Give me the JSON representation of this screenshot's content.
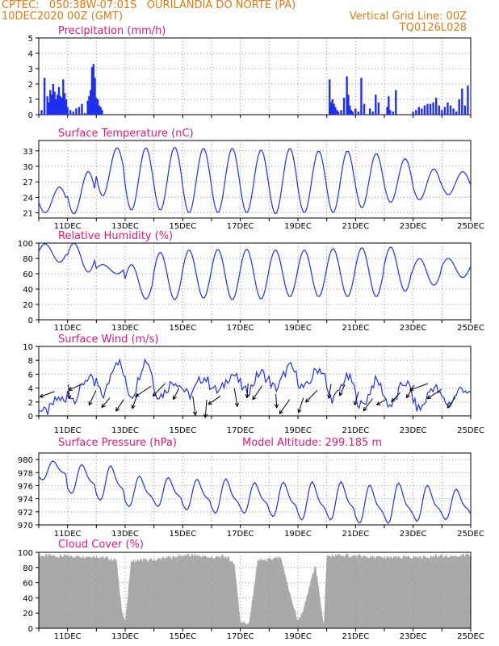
{
  "header": {
    "station": "CPTEC:   050:38W-07:01S   OURILANDIA DO NORTE (PA)",
    "run": "10DEC2020 00Z (GMT)",
    "grid_note": "Vertical Grid Line: 00Z",
    "model_id": "TQ0126L028"
  },
  "colors": {
    "header": "#e07a10",
    "title": "#e0177a",
    "series": "#1f2ff0",
    "bars": "#1f2ff0",
    "cloud": "#a9a9a9",
    "grid": "#999999"
  },
  "x_ticks": [
    "11DEC",
    "13DEC",
    "15DEC",
    "17DEC",
    "19DEC",
    "21DEC",
    "23DEC",
    "25DEC"
  ],
  "chart_data": [
    {
      "type": "bar",
      "title": "Precipitation (mm/h)",
      "ylim": [
        0,
        5
      ],
      "yticks": [
        0,
        1,
        2,
        3,
        4,
        5
      ],
      "grid": true,
      "x_unit": "days since 10DEC2020 00Z",
      "x": [
        0.1,
        0.2,
        0.3,
        0.35,
        0.4,
        0.45,
        0.5,
        0.55,
        0.6,
        0.65,
        0.7,
        0.75,
        0.8,
        0.85,
        0.9,
        0.95,
        1.0,
        1.1,
        1.2,
        1.3,
        1.4,
        1.5,
        1.6,
        1.7,
        1.75,
        1.8,
        1.85,
        1.9,
        1.95,
        2.0,
        2.05,
        2.1,
        2.15,
        2.2,
        10.1,
        10.15,
        10.2,
        10.25,
        10.3,
        10.35,
        10.4,
        10.5,
        10.6,
        10.7,
        10.75,
        10.8,
        10.85,
        10.9,
        11.0,
        11.1,
        11.2,
        11.3,
        11.5,
        11.6,
        11.7,
        11.8,
        12.1,
        12.15,
        12.2,
        12.3,
        12.4,
        13.0,
        13.1,
        13.2,
        13.3,
        13.4,
        13.5,
        13.6,
        13.7,
        13.8,
        13.9,
        14.0,
        14.1,
        14.2,
        14.3,
        14.4,
        14.5,
        14.6,
        14.7,
        14.8,
        14.9
      ],
      "values": [
        0.3,
        2.4,
        1.2,
        0.8,
        1.6,
        1.3,
        2.0,
        1.5,
        1.0,
        1.3,
        1.8,
        1.2,
        1.1,
        2.3,
        1.4,
        1.0,
        0.5,
        0.3,
        0.2,
        0.4,
        0.5,
        0.7,
        0.1,
        0.9,
        1.2,
        1.6,
        3.1,
        3.3,
        2.4,
        1.1,
        1.0,
        0.6,
        0.5,
        0.3,
        2.3,
        0.8,
        1.0,
        0.7,
        0.5,
        0.3,
        0.2,
        0.3,
        1.1,
        2.5,
        1.3,
        0.6,
        0.3,
        0.2,
        0.4,
        0.2,
        2.4,
        0.7,
        0.4,
        0.2,
        1.3,
        0.8,
        0.5,
        1.2,
        0.3,
        0.2,
        1.6,
        0.2,
        0.3,
        0.5,
        0.4,
        0.6,
        0.7,
        0.7,
        0.8,
        1.1,
        0.6,
        0.3,
        0.5,
        0.8,
        0.6,
        0.4,
        0.2,
        1.0,
        1.7,
        0.6,
        1.9
      ]
    },
    {
      "type": "line",
      "title": "Surface Temperature (nC)",
      "ylim": [
        20,
        35
      ],
      "yticks": [
        21,
        24,
        27,
        30,
        33
      ],
      "grid": true,
      "daily_max": [
        26,
        29,
        33.6,
        33.6,
        33.7,
        33.5,
        33.5,
        33.2,
        33.5,
        33.0,
        33.0,
        32.5,
        31.5,
        29.5,
        29
      ],
      "daily_min": [
        21,
        20.8,
        24.3,
        21.5,
        21.5,
        21.0,
        21.0,
        21.0,
        20.8,
        21.0,
        21.0,
        22.0,
        23.0,
        23.5,
        24.5
      ]
    },
    {
      "type": "line",
      "title": "Relative Humidity (%)",
      "ylim": [
        0,
        100
      ],
      "yticks": [
        0,
        20,
        40,
        60,
        80,
        100
      ],
      "grid": true,
      "daily_max": [
        99,
        100,
        72,
        72,
        88,
        91,
        92,
        92,
        91,
        91,
        93,
        94,
        95,
        80,
        80
      ],
      "daily_min": [
        75,
        62,
        60,
        27,
        26,
        28,
        26,
        27,
        30,
        30,
        30,
        30,
        37,
        45,
        55
      ]
    },
    {
      "type": "line",
      "title": "Surface Wind (m/s)",
      "ylim": [
        0,
        10
      ],
      "yticks": [
        0,
        2,
        4,
        6,
        8,
        10
      ],
      "grid": true,
      "daily_max": [
        2.5,
        5.5,
        8,
        8,
        5,
        5.5,
        6,
        6.2,
        7,
        6.8,
        5.5,
        5,
        4.8,
        4.2,
        4
      ],
      "daily_min": [
        0.5,
        2.5,
        3,
        3,
        3,
        3,
        3.5,
        3.5,
        4,
        4,
        2.5,
        1.5,
        1.5,
        1,
        1.8
      ]
    },
    {
      "type": "line",
      "title": "Surface Pressure (hPa)",
      "annotation": "Model Altitude: 299.185 m",
      "ylim": [
        970,
        981
      ],
      "yticks": [
        970,
        972,
        974,
        976,
        978,
        980
      ],
      "grid": true,
      "daily_max": [
        979.5,
        978.8,
        978.5,
        977,
        976.8,
        976.5,
        976.5,
        976,
        976,
        976,
        976,
        975.5,
        975.8,
        975.5,
        975
      ],
      "daily_min": [
        977,
        975,
        974,
        973,
        973,
        972.5,
        972,
        972,
        971.5,
        971,
        971,
        970.5,
        970.5,
        970.8,
        971
      ]
    },
    {
      "type": "area",
      "title": "Cloud Cover (%)",
      "ylim": [
        0,
        100
      ],
      "yticks": [
        0,
        20,
        40,
        60,
        80,
        100
      ],
      "grid": true,
      "x": [
        0,
        1,
        2,
        2.7,
        2.9,
        3.0,
        3.2,
        3.6,
        4.0,
        4.4,
        5.0,
        5.5,
        6.0,
        6.5,
        6.8,
        7.0,
        7.3,
        7.6,
        8.0,
        8.4,
        8.8,
        9.0,
        9.2,
        9.6,
        9.9,
        10.0,
        10.5,
        11,
        12,
        13,
        14,
        15
      ],
      "values": [
        96,
        95,
        95,
        90,
        20,
        8,
        88,
        90,
        90,
        93,
        96,
        96,
        93,
        95,
        85,
        10,
        5,
        90,
        90,
        93,
        35,
        10,
        25,
        85,
        5,
        95,
        96,
        95,
        93,
        94,
        95,
        96
      ]
    }
  ]
}
